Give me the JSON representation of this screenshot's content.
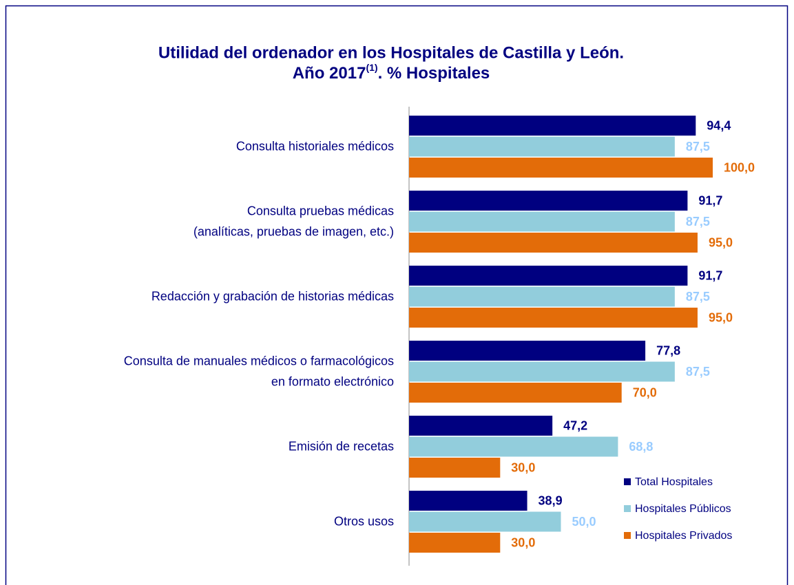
{
  "chart_data": {
    "type": "hbar",
    "title": {
      "line1": "Utilidad del ordenador en los Hospitales de Castilla y León.",
      "line2_start": "Año 2017",
      "line2_superscript": "(1)",
      "line2_end": ". % Hospitales"
    },
    "categories": [
      [
        "Consulta historiales médicos"
      ],
      [
        "Consulta pruebas médicas",
        "(analíticas, pruebas de imagen, etc.)"
      ],
      [
        "Redacción y grabación de historias médicas"
      ],
      [
        "Consulta de manuales médicos o farmacológicos",
        "en formato electrónico"
      ],
      [
        "Emisión de recetas"
      ],
      [
        "Otros usos"
      ]
    ],
    "series": [
      {
        "name": "Total Hospitales",
        "color": "#000080",
        "label_color": "#000080",
        "values": [
          94.4,
          91.7,
          91.7,
          77.8,
          47.2,
          38.9
        ],
        "value_labels": [
          "94,4",
          "91,7",
          "91,7",
          "77,8",
          "47,2",
          "38,9"
        ]
      },
      {
        "name": "Hospitales Públicos",
        "color": "#92cddc",
        "label_color": "#99ccff",
        "values": [
          87.5,
          87.5,
          87.5,
          87.5,
          68.8,
          50.0
        ],
        "value_labels": [
          "87,5",
          "87,5",
          "87,5",
          "87,5",
          "68,8",
          "50,0"
        ]
      },
      {
        "name": "Hospitales Privados",
        "color": "#e36c09",
        "label_color": "#e36c09",
        "values": [
          100.0,
          95.0,
          95.0,
          70.0,
          30.0,
          30.0
        ],
        "value_labels": [
          "100,0",
          "95,0",
          "95,0",
          "70,0",
          "30,0",
          "30,0"
        ]
      }
    ],
    "xlim": [
      0,
      100
    ],
    "legend": "lower right"
  }
}
